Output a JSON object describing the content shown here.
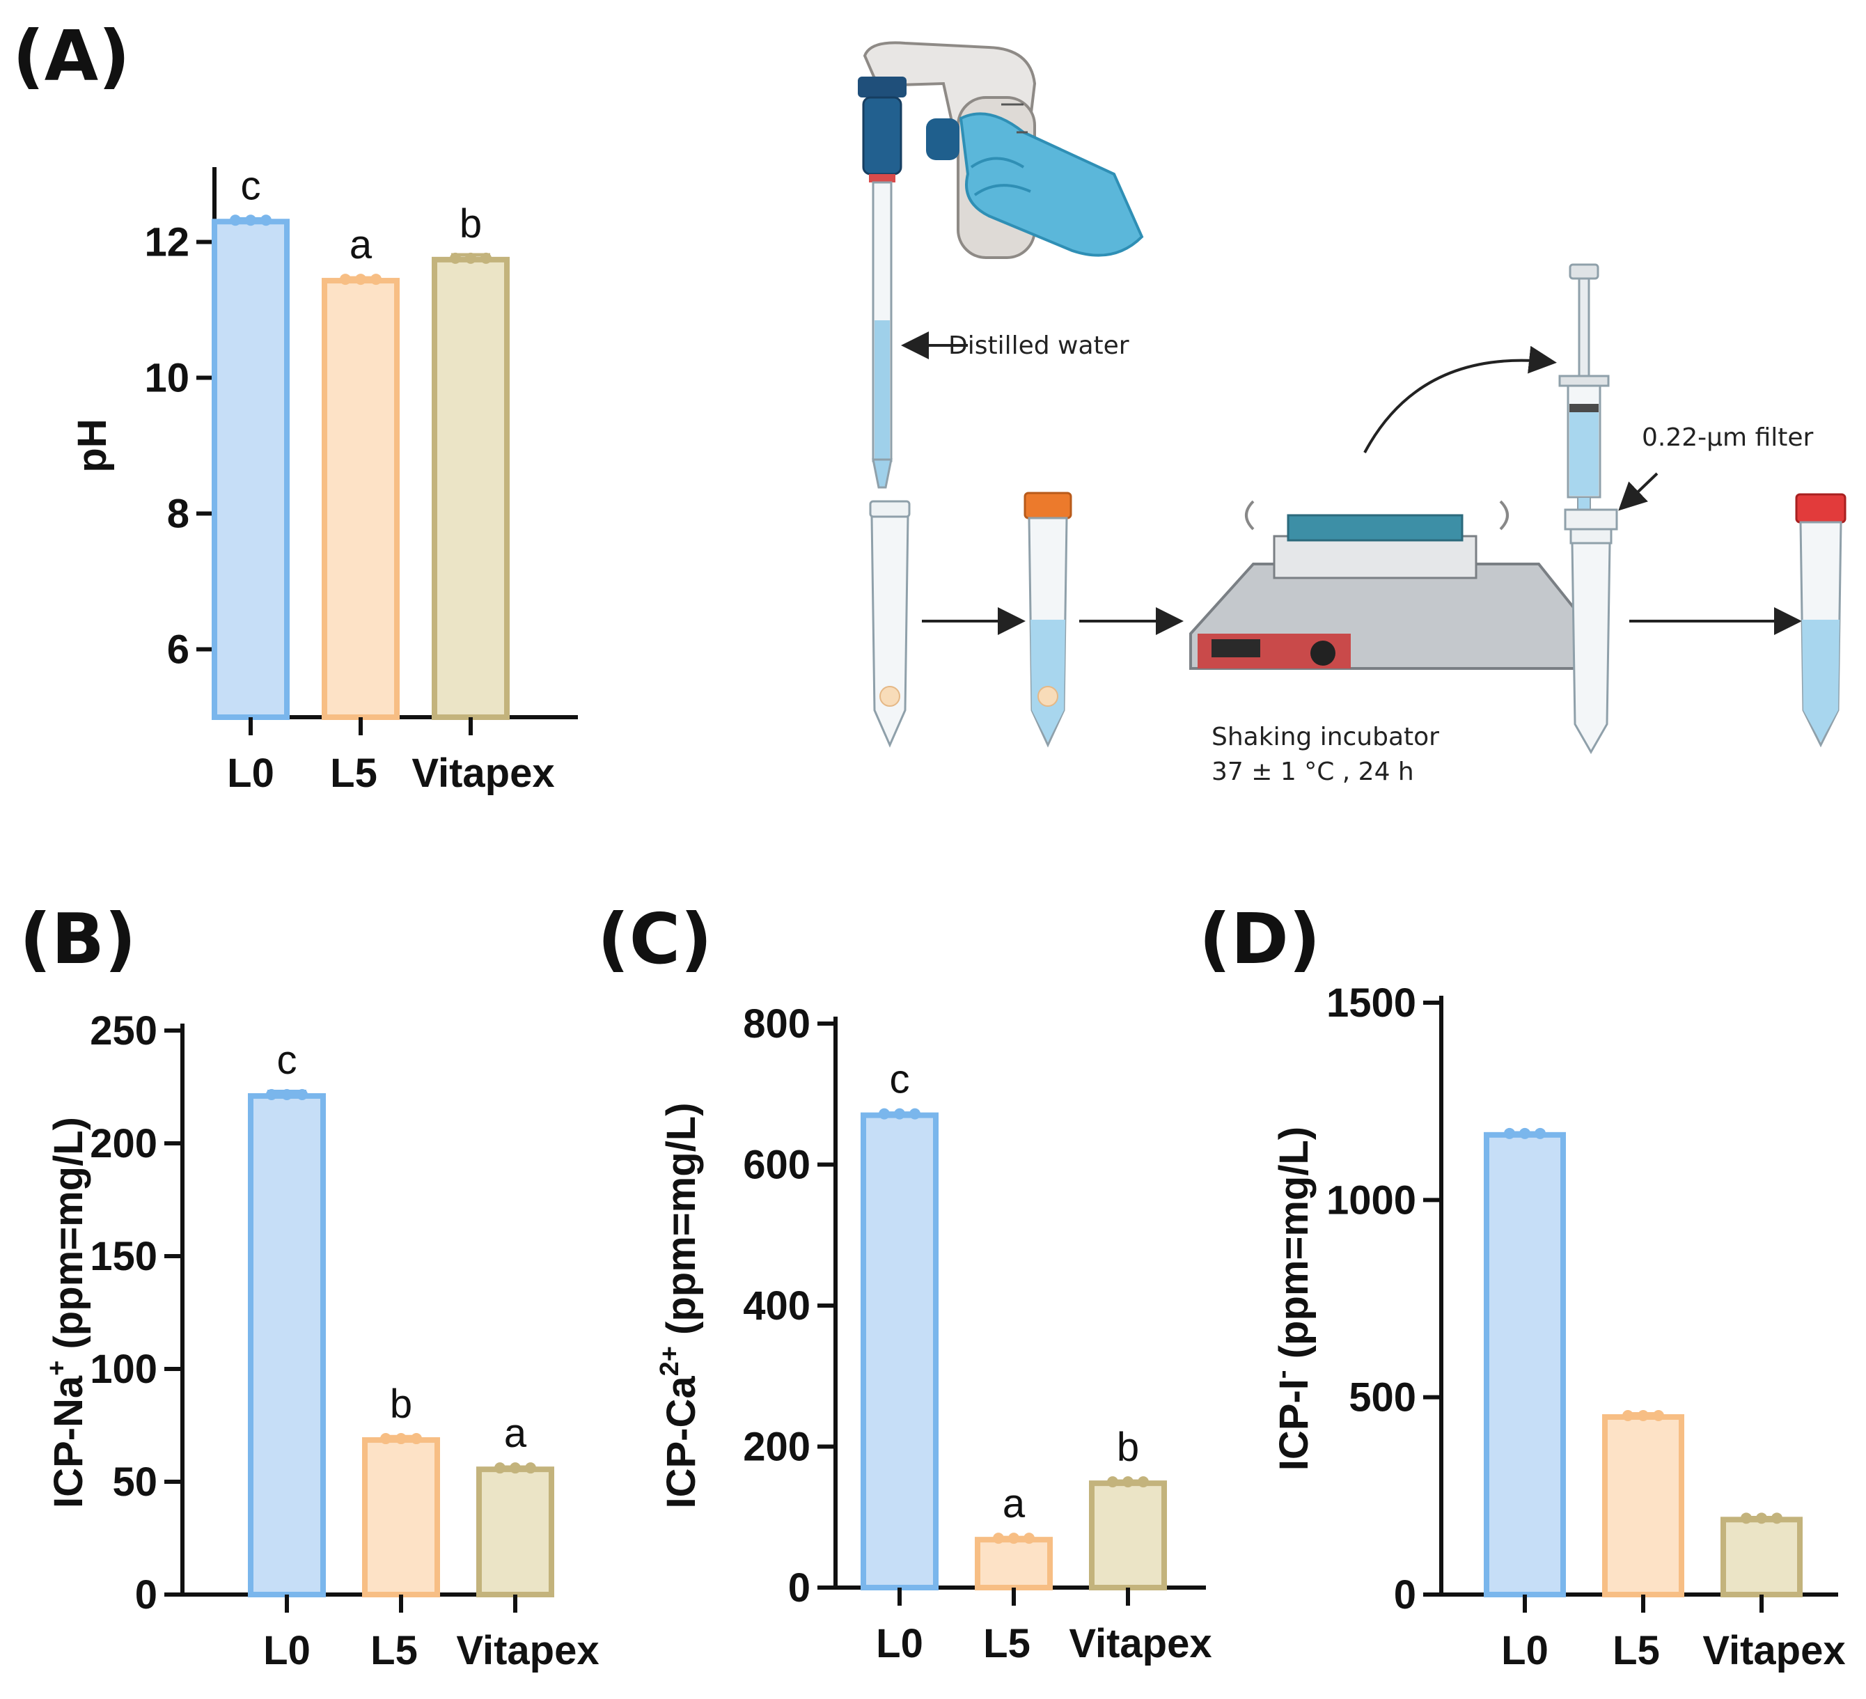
{
  "panels": {
    "a": "(A)",
    "b": "(B)",
    "c": "(C)",
    "d": "(D)"
  },
  "colors": {
    "L0_fill": "#c6def7",
    "L0_stroke": "#7ab6ec",
    "L5_fill": "#fde2c6",
    "L5_stroke": "#f7be84",
    "Vitapex_fill": "#ebe4c6",
    "Vitapex_stroke": "#c3b37c"
  },
  "diagram": {
    "water_label": "Distilled water",
    "filter_label": "0.22-μm filter",
    "incubator_label": "Shaking incubator",
    "incubator_conditions": "37 ± 1 °C , 24 h"
  },
  "chart_data": [
    {
      "id": "A",
      "type": "bar",
      "categories": [
        "L0",
        "L5",
        "Vitapex"
      ],
      "values": [
        12.3,
        11.43,
        11.74
      ],
      "error": [
        0.04,
        0.04,
        0.07
      ],
      "sig": [
        "c",
        "a",
        "b"
      ],
      "ylabel": "pH",
      "ylim": [
        5,
        13
      ],
      "yticks": [
        6,
        8,
        10,
        12
      ],
      "ytick_labels": [
        "6",
        "8",
        "10",
        "12"
      ]
    },
    {
      "id": "B",
      "type": "bar",
      "categories": [
        "L0",
        "L5",
        "Vitapex"
      ],
      "values": [
        221,
        68.5,
        55.5
      ],
      "error": [
        2,
        1.5,
        1
      ],
      "sig": [
        "c",
        "b",
        "a"
      ],
      "ylabel": "ICP-Na",
      "ylabel_sup": "+",
      "ylabel_unit": " (ppm=mg/L)",
      "ylim": [
        0,
        250
      ],
      "yticks": [
        0,
        50,
        100,
        150,
        200,
        250
      ],
      "ytick_labels": [
        "0",
        "50",
        "100",
        "150",
        "200",
        "250"
      ]
    },
    {
      "id": "C",
      "type": "bar",
      "categories": [
        "L0",
        "L5",
        "Vitapex"
      ],
      "values": [
        670,
        68,
        148
      ],
      "error": [
        3,
        3,
        3
      ],
      "sig": [
        "c",
        "a",
        "b"
      ],
      "ylabel": "ICP-Ca",
      "ylabel_sup": "2+",
      "ylabel_unit": " (ppm=mg/L)",
      "ylim": [
        0,
        800
      ],
      "yticks": [
        0,
        200,
        400,
        600,
        800
      ],
      "ytick_labels": [
        "0",
        "200",
        "400",
        "600",
        "800"
      ]
    },
    {
      "id": "D",
      "type": "bar",
      "categories": [
        "L0",
        "L5",
        "Vitapex"
      ],
      "values": [
        1165,
        450,
        190
      ],
      "error": [
        5,
        8,
        5
      ],
      "sig": [
        "",
        "",
        ""
      ],
      "ylabel": "ICP-I",
      "ylabel_sup": "-",
      "ylabel_unit": " (ppm=mg/L)",
      "ylim": [
        0,
        1500
      ],
      "yticks": [
        0,
        500,
        1000,
        1500
      ],
      "ytick_labels": [
        "0",
        "500",
        "1000",
        "1500"
      ]
    }
  ]
}
